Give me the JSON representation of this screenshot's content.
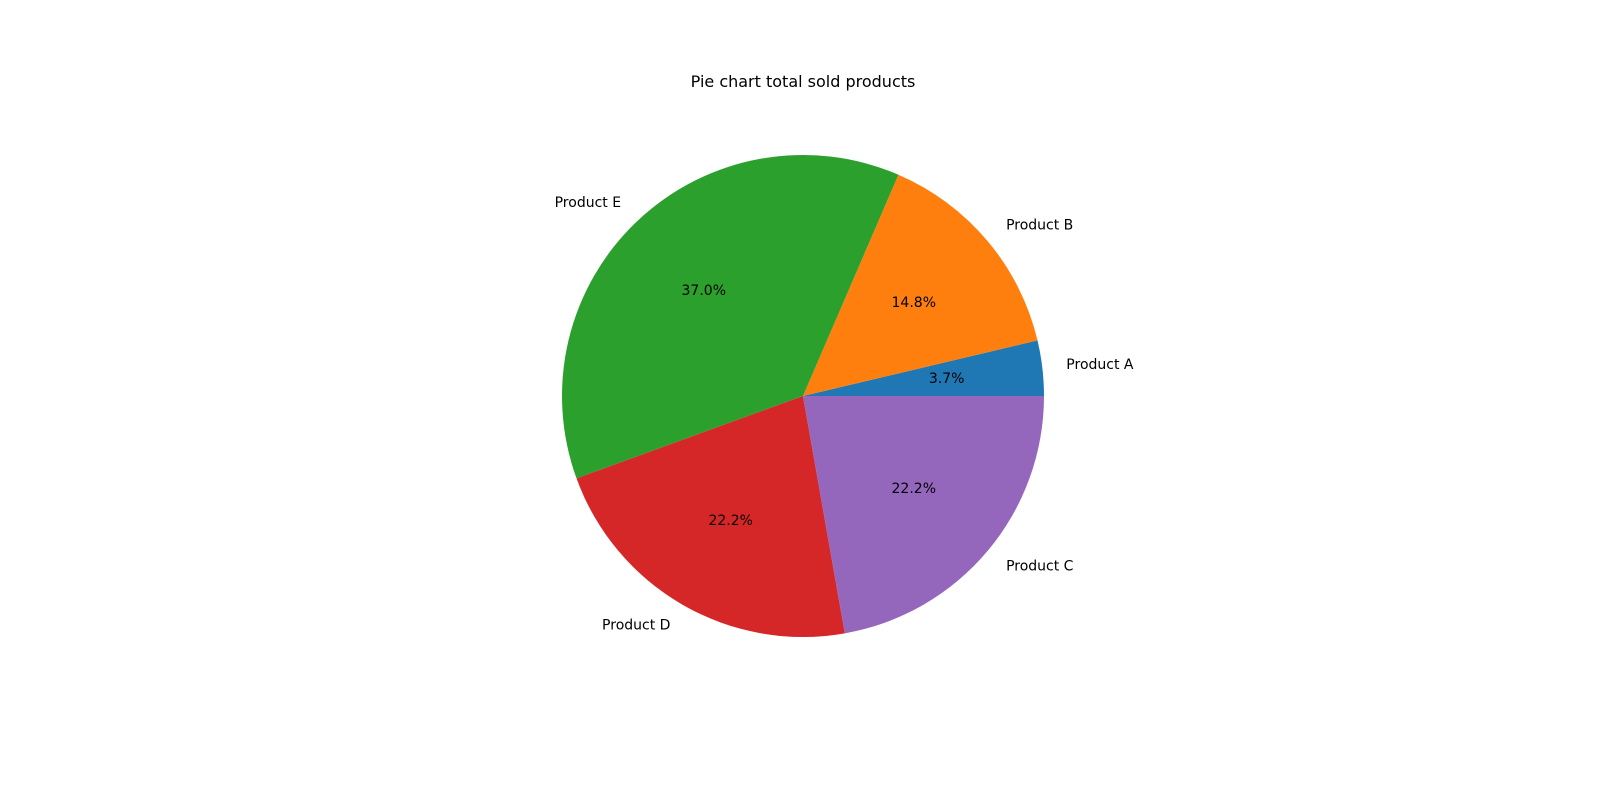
{
  "chart_data": {
    "type": "pie",
    "title": "Pie chart total sold products",
    "start_angle_deg": 0,
    "direction": "counterclockwise",
    "slices": [
      {
        "label": "Product A",
        "value": 1,
        "percent_label": "3.7%",
        "color": "#1f77b4"
      },
      {
        "label": "Product B",
        "value": 4,
        "percent_label": "14.8%",
        "color": "#ff7f0e"
      },
      {
        "label": "Product E",
        "value": 10,
        "percent_label": "37.0%",
        "color": "#2ca02c"
      },
      {
        "label": "Product D",
        "value": 6,
        "percent_label": "22.2%",
        "color": "#d62728"
      },
      {
        "label": "Product C",
        "value": 6,
        "percent_label": "22.2%",
        "color": "#9467bd"
      }
    ]
  }
}
